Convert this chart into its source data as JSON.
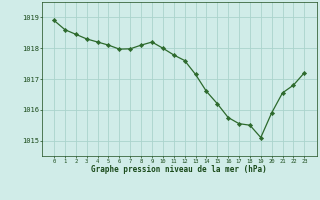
{
  "x": [
    0,
    1,
    2,
    3,
    4,
    5,
    6,
    7,
    8,
    9,
    10,
    11,
    12,
    13,
    14,
    15,
    16,
    17,
    18,
    19,
    20,
    21,
    22,
    23
  ],
  "y": [
    1018.9,
    1018.6,
    1018.45,
    1018.3,
    1018.2,
    1018.1,
    1017.97,
    1017.98,
    1018.1,
    1018.2,
    1018.0,
    1017.78,
    1017.6,
    1017.15,
    1016.6,
    1016.2,
    1015.75,
    1015.55,
    1015.5,
    1015.1,
    1015.9,
    1016.55,
    1016.8,
    1017.2
  ],
  "line_color": "#2d6a2d",
  "marker_color": "#2d6a2d",
  "bg_color": "#d0ece8",
  "grid_color": "#aad4cc",
  "xlabel": "Graphe pression niveau de la mer (hPa)",
  "xlabel_color": "#1a4a1a",
  "tick_color": "#1a4a1a",
  "ylim": [
    1014.5,
    1019.5
  ],
  "yticks": [
    1015,
    1016,
    1017,
    1018,
    1019
  ],
  "xticks": [
    0,
    1,
    2,
    3,
    4,
    5,
    6,
    7,
    8,
    9,
    10,
    11,
    12,
    13,
    14,
    15,
    16,
    17,
    18,
    19,
    20,
    21,
    22,
    23
  ],
  "figsize": [
    3.2,
    2.0
  ],
  "dpi": 100
}
